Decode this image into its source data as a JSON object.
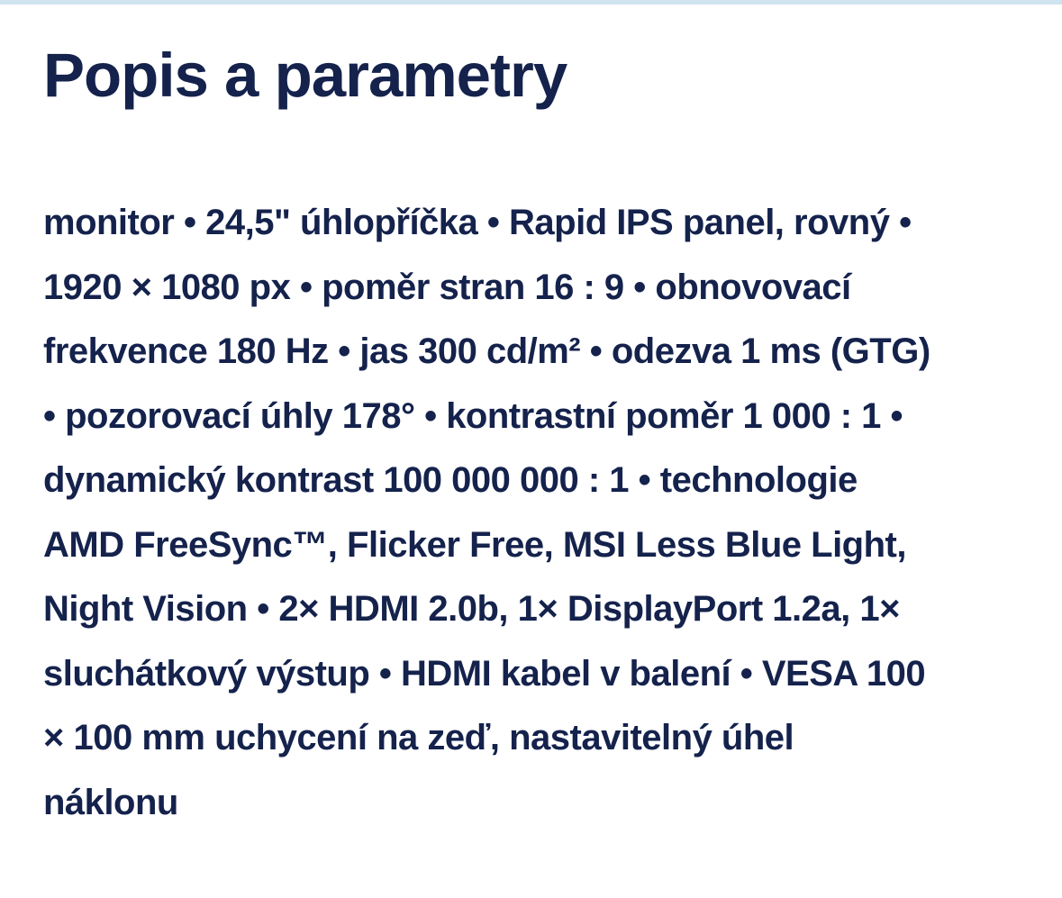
{
  "colors": {
    "text_navy": "#14224c",
    "top_strip_blue": "#cfe4f0",
    "page_background": "#ffffff"
  },
  "section": {
    "title": "Popis a parametry",
    "description_lines": [
      "monitor • 24,5\" úhlopříčka • Rapid IPS panel, rovný •",
      "1920 × 1080 px • poměr stran 16 : 9 • obnovovací",
      "frekvence 180 Hz • jas 300 cd/m² • odezva 1 ms (GTG)",
      "• pozorovací úhly 178° • kontrastní poměr 1 000 : 1 •",
      "dynamický kontrast 100 000 000 : 1 • technologie",
      "AMD FreeSync™, Flicker Free, MSI Less Blue Light,",
      "Night Vision • 2× HDMI 2.0b, 1× DisplayPort 1.2a, 1×",
      "sluchátkový výstup • HDMI kabel v balení • VESA 100",
      "× 100 mm uchycení na zeď, nastavitelný úhel",
      "náklonu"
    ]
  }
}
